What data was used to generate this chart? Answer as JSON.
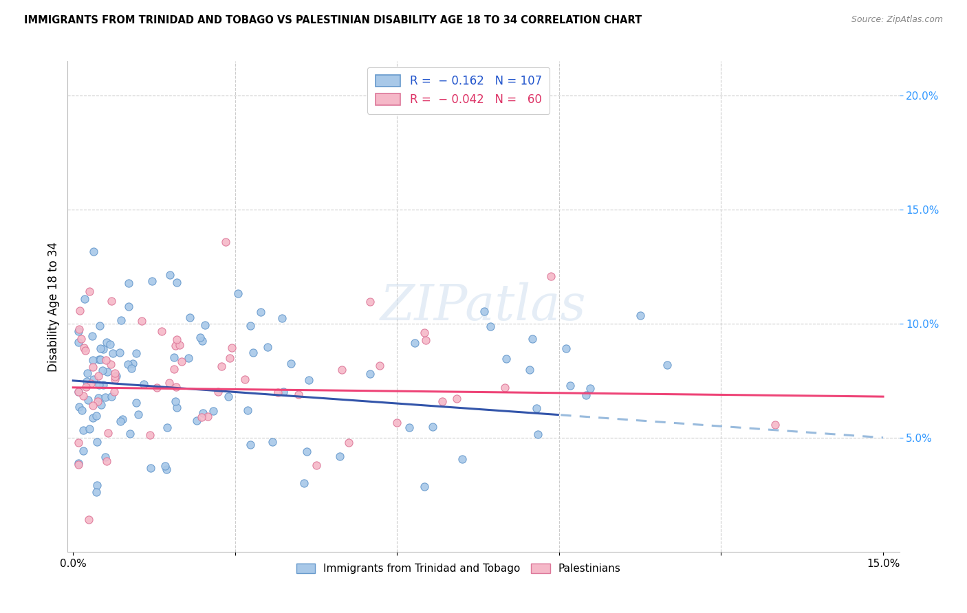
{
  "title": "IMMIGRANTS FROM TRINIDAD AND TOBAGO VS PALESTINIAN DISABILITY AGE 18 TO 34 CORRELATION CHART",
  "source": "Source: ZipAtlas.com",
  "ylabel": "Disability Age 18 to 34",
  "x_min": 0.0,
  "x_max": 0.15,
  "y_min": 0.0,
  "y_max": 0.215,
  "series1_color": "#a8c8e8",
  "series1_edge": "#6699cc",
  "series2_color": "#f5b8c8",
  "series2_edge": "#dd7799",
  "trendline1_solid_color": "#3355aa",
  "trendline1_dash_color": "#99bbdd",
  "trendline2_color": "#ee4477",
  "watermark": "ZIPatlas",
  "R1": -0.162,
  "N1": 107,
  "R2": -0.042,
  "N2": 60,
  "legend1_label": "Immigrants from Trinidad and Tobago",
  "legend2_label": "Palestinians",
  "legend1_patch_color": "#a8c8e8",
  "legend1_patch_edge": "#6699cc",
  "legend2_patch_color": "#f5b8c8",
  "legend2_patch_edge": "#dd7799",
  "trendline_split_x": 0.09
}
